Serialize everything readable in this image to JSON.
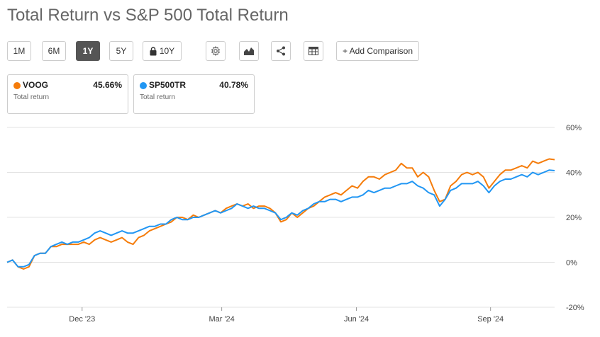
{
  "title": "Total Return vs S&P 500 Total Return",
  "toolbar": {
    "periods": [
      "1M",
      "6M",
      "1Y",
      "5Y"
    ],
    "active_period": "1Y",
    "locked_period": "10Y",
    "add_comparison": "+ Add Comparison",
    "icons": [
      "gear-icon",
      "mountain-chart-icon",
      "share-icon",
      "table-icon",
      "lock-icon"
    ]
  },
  "legend": [
    {
      "ticker": "VOOG",
      "value": "45.66%",
      "label": "Total return",
      "color": "#f57c0a"
    },
    {
      "ticker": "SP500TR",
      "value": "40.78%",
      "label": "Total return",
      "color": "#2196f3"
    }
  ],
  "chart_data": {
    "type": "line",
    "title": "Total Return vs S&P 500 Total Return",
    "xlabel": "",
    "ylabel": "",
    "ylim": [
      -20,
      60
    ],
    "xlim": [
      0,
      100
    ],
    "grid": true,
    "y_ticks": [
      {
        "value": 60,
        "label": "60%"
      },
      {
        "value": 40,
        "label": "40%"
      },
      {
        "value": 20,
        "label": "20%"
      },
      {
        "value": 0,
        "label": "0%"
      },
      {
        "value": -20,
        "label": "-20%"
      }
    ],
    "x_ticks": [
      {
        "value": 13.7,
        "label": "Dec '23"
      },
      {
        "value": 39.2,
        "label": "Mar '24"
      },
      {
        "value": 63.8,
        "label": "Jun '24"
      },
      {
        "value": 88.3,
        "label": "Sep '24"
      }
    ],
    "series": [
      {
        "name": "VOOG",
        "color": "#f57c0a",
        "points": [
          [
            0,
            0
          ],
          [
            1,
            1
          ],
          [
            2,
            -2
          ],
          [
            3,
            -3
          ],
          [
            4,
            -2
          ],
          [
            5,
            3
          ],
          [
            6,
            4
          ],
          [
            7,
            4
          ],
          [
            8,
            7
          ],
          [
            9,
            7
          ],
          [
            10,
            8
          ],
          [
            11,
            8
          ],
          [
            12,
            8
          ],
          [
            13,
            8
          ],
          [
            14,
            9
          ],
          [
            15,
            8
          ],
          [
            16,
            10
          ],
          [
            17,
            11
          ],
          [
            18,
            10
          ],
          [
            19,
            9
          ],
          [
            20,
            10
          ],
          [
            21,
            11
          ],
          [
            22,
            9
          ],
          [
            23,
            8
          ],
          [
            24,
            11
          ],
          [
            25,
            12
          ],
          [
            26,
            14
          ],
          [
            27,
            15
          ],
          [
            28,
            16
          ],
          [
            29,
            17
          ],
          [
            30,
            18
          ],
          [
            31,
            20
          ],
          [
            32,
            20
          ],
          [
            33,
            19
          ],
          [
            34,
            21
          ],
          [
            35,
            20
          ],
          [
            36,
            21
          ],
          [
            37,
            22
          ],
          [
            38,
            23
          ],
          [
            39,
            22
          ],
          [
            40,
            24
          ],
          [
            41,
            25
          ],
          [
            42,
            26
          ],
          [
            43,
            25
          ],
          [
            44,
            26
          ],
          [
            45,
            24
          ],
          [
            46,
            25
          ],
          [
            47,
            25
          ],
          [
            48,
            24
          ],
          [
            49,
            22
          ],
          [
            50,
            18
          ],
          [
            51,
            19
          ],
          [
            52,
            22
          ],
          [
            53,
            20
          ],
          [
            54,
            22
          ],
          [
            55,
            24
          ],
          [
            56,
            25
          ],
          [
            57,
            27
          ],
          [
            58,
            29
          ],
          [
            59,
            30
          ],
          [
            60,
            31
          ],
          [
            61,
            30
          ],
          [
            62,
            32
          ],
          [
            63,
            34
          ],
          [
            64,
            33
          ],
          [
            65,
            36
          ],
          [
            66,
            38
          ],
          [
            67,
            38
          ],
          [
            68,
            37
          ],
          [
            69,
            39
          ],
          [
            70,
            40
          ],
          [
            71,
            41
          ],
          [
            72,
            44
          ],
          [
            73,
            42
          ],
          [
            74,
            42
          ],
          [
            75,
            38
          ],
          [
            76,
            40
          ],
          [
            77,
            38
          ],
          [
            78,
            32
          ],
          [
            79,
            27
          ],
          [
            80,
            28
          ],
          [
            81,
            34
          ],
          [
            82,
            36
          ],
          [
            83,
            39
          ],
          [
            84,
            40
          ],
          [
            85,
            39
          ],
          [
            86,
            40
          ],
          [
            87,
            38
          ],
          [
            88,
            33
          ],
          [
            89,
            36
          ],
          [
            90,
            39
          ],
          [
            91,
            41
          ],
          [
            92,
            41
          ],
          [
            93,
            42
          ],
          [
            94,
            43
          ],
          [
            95,
            42
          ],
          [
            96,
            45
          ],
          [
            97,
            44
          ],
          [
            98,
            45
          ],
          [
            99,
            46
          ],
          [
            100,
            45.66
          ]
        ]
      },
      {
        "name": "SP500TR",
        "color": "#2196f3",
        "points": [
          [
            0,
            0
          ],
          [
            1,
            1
          ],
          [
            2,
            -2
          ],
          [
            3,
            -2
          ],
          [
            4,
            -1
          ],
          [
            5,
            3
          ],
          [
            6,
            4
          ],
          [
            7,
            4
          ],
          [
            8,
            7
          ],
          [
            9,
            8
          ],
          [
            10,
            9
          ],
          [
            11,
            8
          ],
          [
            12,
            9
          ],
          [
            13,
            9
          ],
          [
            14,
            10
          ],
          [
            15,
            11
          ],
          [
            16,
            13
          ],
          [
            17,
            14
          ],
          [
            18,
            13
          ],
          [
            19,
            12
          ],
          [
            20,
            13
          ],
          [
            21,
            14
          ],
          [
            22,
            13
          ],
          [
            23,
            13
          ],
          [
            24,
            14
          ],
          [
            25,
            15
          ],
          [
            26,
            16
          ],
          [
            27,
            16
          ],
          [
            28,
            17
          ],
          [
            29,
            17
          ],
          [
            30,
            19
          ],
          [
            31,
            20
          ],
          [
            32,
            19
          ],
          [
            33,
            19
          ],
          [
            34,
            20
          ],
          [
            35,
            20
          ],
          [
            36,
            21
          ],
          [
            37,
            22
          ],
          [
            38,
            23
          ],
          [
            39,
            22
          ],
          [
            40,
            23
          ],
          [
            41,
            24
          ],
          [
            42,
            26
          ],
          [
            43,
            25
          ],
          [
            44,
            24
          ],
          [
            45,
            25
          ],
          [
            46,
            24
          ],
          [
            47,
            24
          ],
          [
            48,
            23
          ],
          [
            49,
            22
          ],
          [
            50,
            19
          ],
          [
            51,
            20
          ],
          [
            52,
            22
          ],
          [
            53,
            21
          ],
          [
            54,
            23
          ],
          [
            55,
            24
          ],
          [
            56,
            26
          ],
          [
            57,
            27
          ],
          [
            58,
            27
          ],
          [
            59,
            28
          ],
          [
            60,
            28
          ],
          [
            61,
            27
          ],
          [
            62,
            28
          ],
          [
            63,
            29
          ],
          [
            64,
            29
          ],
          [
            65,
            30
          ],
          [
            66,
            32
          ],
          [
            67,
            31
          ],
          [
            68,
            32
          ],
          [
            69,
            33
          ],
          [
            70,
            33
          ],
          [
            71,
            34
          ],
          [
            72,
            35
          ],
          [
            73,
            35
          ],
          [
            74,
            36
          ],
          [
            75,
            34
          ],
          [
            76,
            33
          ],
          [
            77,
            31
          ],
          [
            78,
            30
          ],
          [
            79,
            25
          ],
          [
            80,
            28
          ],
          [
            81,
            32
          ],
          [
            82,
            33
          ],
          [
            83,
            35
          ],
          [
            84,
            35
          ],
          [
            85,
            35
          ],
          [
            86,
            36
          ],
          [
            87,
            34
          ],
          [
            88,
            31
          ],
          [
            89,
            34
          ],
          [
            90,
            36
          ],
          [
            91,
            37
          ],
          [
            92,
            37
          ],
          [
            93,
            38
          ],
          [
            94,
            39
          ],
          [
            95,
            38
          ],
          [
            96,
            40
          ],
          [
            97,
            39
          ],
          [
            98,
            40
          ],
          [
            99,
            41
          ],
          [
            100,
            40.78
          ]
        ]
      }
    ]
  }
}
